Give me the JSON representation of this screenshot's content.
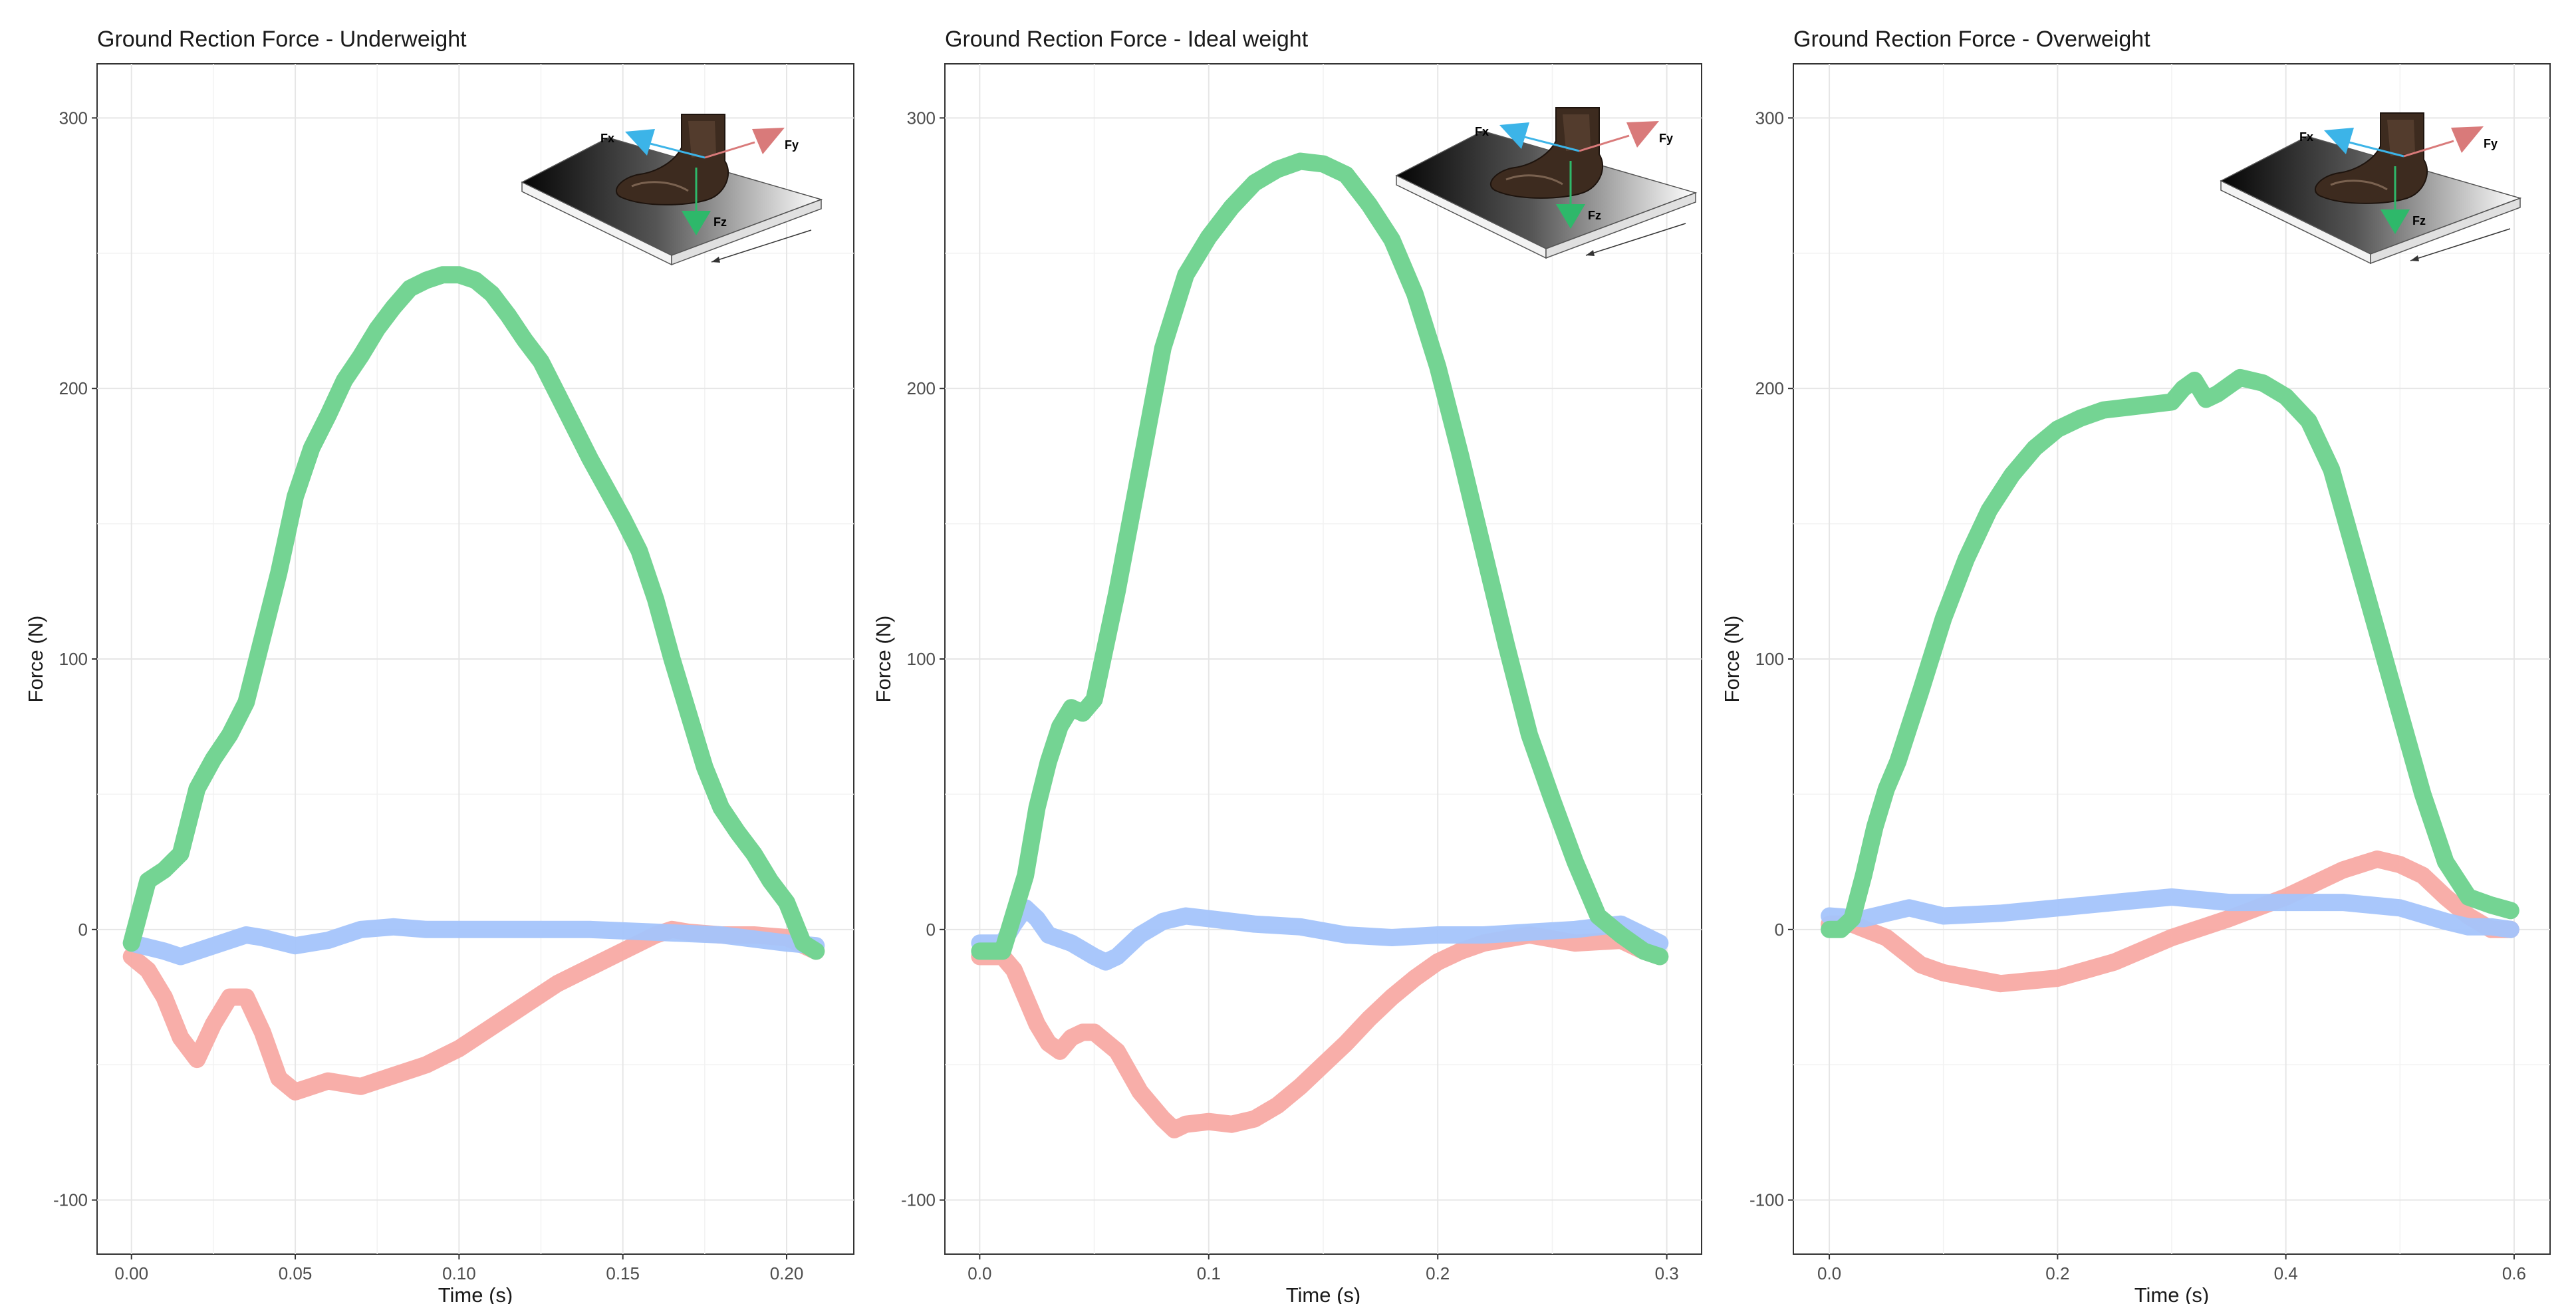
{
  "colors": {
    "Fx": "#a4c4fb",
    "Fy": "#f8aaa4",
    "Fz": "#74d493",
    "inset_Fx": "#3cb4e8",
    "inset_Fy": "#d97a7a",
    "inset_Fz": "#2eb86a"
  },
  "inset": {
    "Fx": "Fx",
    "Fy": "Fy",
    "Fz": "Fz",
    "image": "hoof-on-force-plate"
  },
  "chart_data": [
    {
      "type": "line",
      "title": "Ground Rection Force - Underweight",
      "xlabel": "Time (s)",
      "ylabel": "Force (N)",
      "xlim": [
        -0.0105,
        0.2205
      ],
      "ylim": [
        -120,
        320
      ],
      "xticks": [
        0.0,
        0.05,
        0.1,
        0.15,
        0.2
      ],
      "xtick_labels": [
        "0.00",
        "0.05",
        "0.10",
        "0.15",
        "0.20"
      ],
      "yticks": [
        -100,
        0,
        100,
        200,
        300
      ],
      "ytick_labels": [
        "-100",
        "0",
        "100",
        "200",
        "300"
      ],
      "grid": true,
      "series": [
        {
          "key": "Fz",
          "x": [
            0.0,
            0.005,
            0.01,
            0.015,
            0.02,
            0.025,
            0.03,
            0.035,
            0.04,
            0.045,
            0.05,
            0.055,
            0.06,
            0.065,
            0.07,
            0.075,
            0.08,
            0.085,
            0.09,
            0.095,
            0.1,
            0.105,
            0.11,
            0.115,
            0.12,
            0.125,
            0.13,
            0.135,
            0.14,
            0.145,
            0.15,
            0.155,
            0.16,
            0.165,
            0.17,
            0.175,
            0.18,
            0.185,
            0.19,
            0.195,
            0.2,
            0.205,
            0.209
          ],
          "values": [
            -5,
            18,
            22,
            28,
            52,
            63,
            72,
            84,
            108,
            132,
            160,
            178,
            190,
            203,
            212,
            222,
            230,
            237,
            240,
            242,
            242,
            240,
            235,
            227,
            218,
            210,
            198,
            186,
            174,
            163,
            152,
            140,
            122,
            100,
            80,
            60,
            45,
            36,
            28,
            18,
            10,
            -5,
            -8
          ]
        },
        {
          "key": "Fx",
          "x": [
            0.0,
            0.01,
            0.015,
            0.02,
            0.03,
            0.035,
            0.04,
            0.05,
            0.06,
            0.07,
            0.08,
            0.09,
            0.1,
            0.12,
            0.14,
            0.16,
            0.18,
            0.2,
            0.209
          ],
          "values": [
            -5,
            -8,
            -10,
            -8,
            -4,
            -2,
            -3,
            -6,
            -4,
            0,
            1,
            0,
            0,
            0,
            0,
            -1,
            -2,
            -5,
            -6
          ]
        },
        {
          "key": "Fy",
          "x": [
            0.0,
            0.005,
            0.01,
            0.015,
            0.02,
            0.025,
            0.03,
            0.035,
            0.04,
            0.045,
            0.05,
            0.055,
            0.06,
            0.07,
            0.08,
            0.09,
            0.1,
            0.11,
            0.12,
            0.13,
            0.14,
            0.15,
            0.16,
            0.165,
            0.17,
            0.18,
            0.19,
            0.2,
            0.209
          ],
          "values": [
            -10,
            -15,
            -25,
            -40,
            -48,
            -35,
            -25,
            -25,
            -38,
            -55,
            -60,
            -58,
            -56,
            -58,
            -54,
            -50,
            -44,
            -36,
            -28,
            -20,
            -14,
            -8,
            -2,
            0,
            -1,
            -2,
            -2,
            -3,
            -8
          ]
        }
      ]
    },
    {
      "type": "line",
      "title": "Ground Rection Force - Ideal weight",
      "xlabel": "Time (s)",
      "ylabel": "Force (N)",
      "xlim": [
        -0.0152,
        0.3152
      ],
      "ylim": [
        -120,
        320
      ],
      "xticks": [
        0.0,
        0.1,
        0.2,
        0.3
      ],
      "xtick_labels": [
        "0.0",
        "0.1",
        "0.2",
        "0.3"
      ],
      "yticks": [
        -100,
        0,
        100,
        200,
        300
      ],
      "ytick_labels": [
        "-100",
        "0",
        "100",
        "200",
        "300"
      ],
      "grid": true,
      "series": [
        {
          "key": "Fz",
          "x": [
            0.0,
            0.01,
            0.02,
            0.025,
            0.03,
            0.035,
            0.04,
            0.045,
            0.05,
            0.06,
            0.07,
            0.08,
            0.09,
            0.1,
            0.11,
            0.12,
            0.13,
            0.14,
            0.15,
            0.16,
            0.17,
            0.18,
            0.19,
            0.2,
            0.21,
            0.22,
            0.23,
            0.24,
            0.25,
            0.26,
            0.27,
            0.28,
            0.285,
            0.29,
            0.297
          ],
          "values": [
            -8,
            -8,
            20,
            45,
            62,
            75,
            82,
            80,
            85,
            125,
            170,
            215,
            242,
            256,
            267,
            276,
            281,
            284,
            283,
            279,
            268,
            255,
            235,
            208,
            175,
            140,
            105,
            72,
            48,
            25,
            5,
            -2,
            -5,
            -8,
            -10
          ]
        },
        {
          "key": "Fx",
          "x": [
            0.0,
            0.01,
            0.015,
            0.02,
            0.025,
            0.03,
            0.04,
            0.05,
            0.055,
            0.06,
            0.07,
            0.08,
            0.09,
            0.1,
            0.12,
            0.14,
            0.16,
            0.18,
            0.2,
            0.22,
            0.24,
            0.26,
            0.28,
            0.297
          ],
          "values": [
            -5,
            -5,
            2,
            8,
            4,
            -2,
            -5,
            -10,
            -12,
            -10,
            -2,
            3,
            5,
            4,
            2,
            1,
            -2,
            -3,
            -2,
            -2,
            -1,
            0,
            2,
            -5
          ]
        },
        {
          "key": "Fy",
          "x": [
            0.0,
            0.01,
            0.015,
            0.02,
            0.025,
            0.03,
            0.035,
            0.04,
            0.045,
            0.05,
            0.06,
            0.07,
            0.08,
            0.085,
            0.09,
            0.1,
            0.11,
            0.12,
            0.13,
            0.14,
            0.15,
            0.16,
            0.17,
            0.18,
            0.19,
            0.2,
            0.21,
            0.22,
            0.24,
            0.26,
            0.28,
            0.29,
            0.297
          ],
          "values": [
            -10,
            -10,
            -15,
            -25,
            -35,
            -42,
            -45,
            -40,
            -38,
            -38,
            -45,
            -60,
            -70,
            -74,
            -72,
            -71,
            -72,
            -70,
            -65,
            -58,
            -50,
            -42,
            -33,
            -25,
            -18,
            -12,
            -8,
            -5,
            -2,
            -5,
            -4,
            -8,
            -10
          ]
        }
      ]
    },
    {
      "type": "line",
      "title": "Ground Rection Force - Overweight",
      "xlabel": "Time (s)",
      "ylabel": "Force (N)",
      "xlim": [
        -0.0315,
        0.6315
      ],
      "ylim": [
        -120,
        320
      ],
      "xticks": [
        0.0,
        0.2,
        0.4,
        0.6
      ],
      "xtick_labels": [
        "0.0",
        "0.2",
        "0.4",
        "0.6"
      ],
      "yticks": [
        -100,
        0,
        100,
        200,
        300
      ],
      "ytick_labels": [
        "-100",
        "0",
        "100",
        "200",
        "300"
      ],
      "grid": true,
      "series": [
        {
          "key": "Fz",
          "x": [
            0.0,
            0.01,
            0.02,
            0.03,
            0.04,
            0.05,
            0.06,
            0.07,
            0.08,
            0.1,
            0.12,
            0.14,
            0.16,
            0.18,
            0.2,
            0.22,
            0.24,
            0.26,
            0.28,
            0.3,
            0.31,
            0.32,
            0.33,
            0.34,
            0.36,
            0.38,
            0.4,
            0.42,
            0.44,
            0.46,
            0.48,
            0.5,
            0.52,
            0.54,
            0.56,
            0.58,
            0.597
          ],
          "values": [
            0,
            0,
            4,
            20,
            38,
            52,
            62,
            75,
            88,
            115,
            137,
            155,
            168,
            178,
            185,
            189,
            192,
            193,
            194,
            195,
            200,
            203,
            196,
            198,
            204,
            202,
            197,
            188,
            170,
            140,
            110,
            80,
            50,
            25,
            12,
            9,
            7
          ]
        },
        {
          "key": "Fx",
          "x": [
            0.0,
            0.03,
            0.05,
            0.07,
            0.1,
            0.15,
            0.2,
            0.25,
            0.3,
            0.35,
            0.4,
            0.45,
            0.5,
            0.54,
            0.56,
            0.58,
            0.597
          ],
          "values": [
            5,
            4,
            6,
            8,
            5,
            6,
            8,
            10,
            12,
            10,
            10,
            10,
            8,
            3,
            1,
            1,
            0
          ]
        },
        {
          "key": "Fy",
          "x": [
            0.0,
            0.02,
            0.05,
            0.08,
            0.1,
            0.15,
            0.2,
            0.25,
            0.3,
            0.35,
            0.4,
            0.45,
            0.48,
            0.5,
            0.52,
            0.54,
            0.56,
            0.58,
            0.597
          ],
          "values": [
            2,
            2,
            -3,
            -13,
            -16,
            -20,
            -18,
            -12,
            -3,
            4,
            12,
            22,
            26,
            24,
            20,
            12,
            5,
            0,
            0
          ]
        }
      ]
    }
  ]
}
